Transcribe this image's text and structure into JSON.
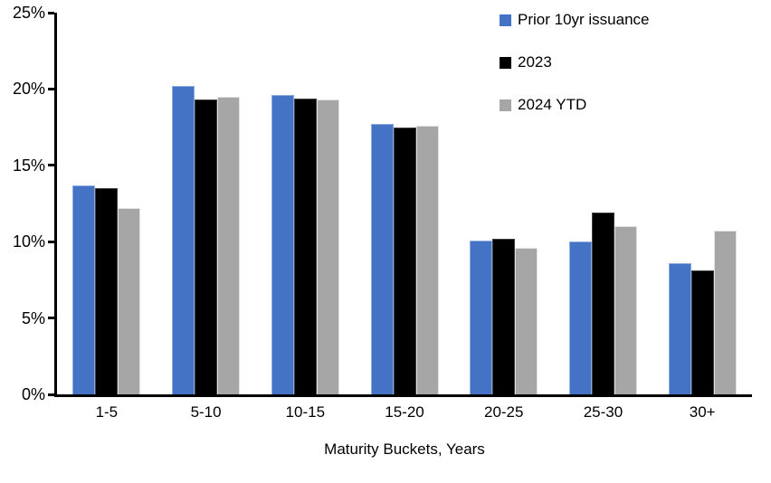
{
  "chart_data": {
    "type": "bar",
    "title": "",
    "xlabel": "Maturity Buckets, Years",
    "ylabel": "",
    "categories": [
      "1-5",
      "5-10",
      "10-15",
      "15-20",
      "20-25",
      "25-30",
      "30+"
    ],
    "series": [
      {
        "name": "Prior 10yr issuance",
        "color": "#4472C4",
        "edge_color": "#8FAADC",
        "values": [
          13.7,
          20.2,
          19.6,
          17.7,
          10.1,
          10.0,
          8.6
        ]
      },
      {
        "name": "2023",
        "color": "#000000",
        "edge_color": "#404040",
        "values": [
          13.5,
          19.3,
          19.4,
          17.5,
          10.2,
          11.9,
          8.1
        ]
      },
      {
        "name": "2024 YTD",
        "color": "#A6A6A6",
        "edge_color": "#E2E2E2",
        "values": [
          12.2,
          19.5,
          19.3,
          17.6,
          9.6,
          11.0,
          10.7
        ]
      }
    ],
    "ylim": [
      0,
      25
    ],
    "ytick_step": 5,
    "ytick_labels": [
      "0%",
      "5%",
      "10%",
      "15%",
      "20%",
      "25%"
    ],
    "grid": false,
    "legend_position": "top-right",
    "axis_color": "#000000",
    "background_color": "#FFFFFF"
  }
}
